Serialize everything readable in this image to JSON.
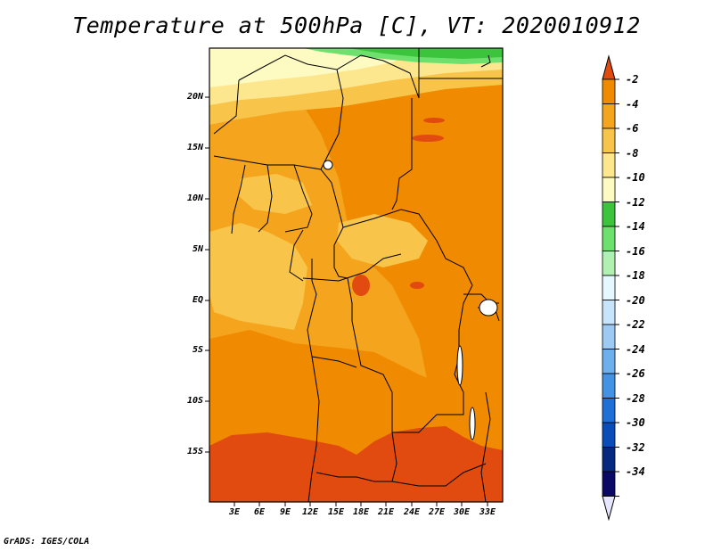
{
  "title": "Temperature at 500hPa [C], VT: 2020010912",
  "credit": "GrADS: IGES/COLA",
  "map": {
    "lat_labels": [
      "20N",
      "15N",
      "10N",
      "5N",
      "EQ",
      "5S",
      "10S",
      "15S"
    ],
    "lon_labels": [
      "3E",
      "6E",
      "9E",
      "12E",
      "15E",
      "18E",
      "21E",
      "24E",
      "27E",
      "30E",
      "33E"
    ]
  },
  "colorbar": {
    "labels": [
      "-2",
      "-4",
      "-6",
      "-8",
      "-10",
      "-12",
      "-14",
      "-16",
      "-18",
      "-20",
      "-22",
      "-24",
      "-26",
      "-28",
      "-30",
      "-32",
      "-34"
    ],
    "colors": [
      "#e14b0f",
      "#f08a00",
      "#f5a41e",
      "#f8c54a",
      "#fde78e",
      "#fefbc2",
      "#3cc43c",
      "#6ee06e",
      "#b0f0b0",
      "#e6f8ff",
      "#c8e4fa",
      "#9ccaf5",
      "#6eb0ee",
      "#4392e4",
      "#1f6fd6",
      "#0a4cb8",
      "#07287f",
      "#0a0a66",
      "#e6e6ff"
    ]
  }
}
